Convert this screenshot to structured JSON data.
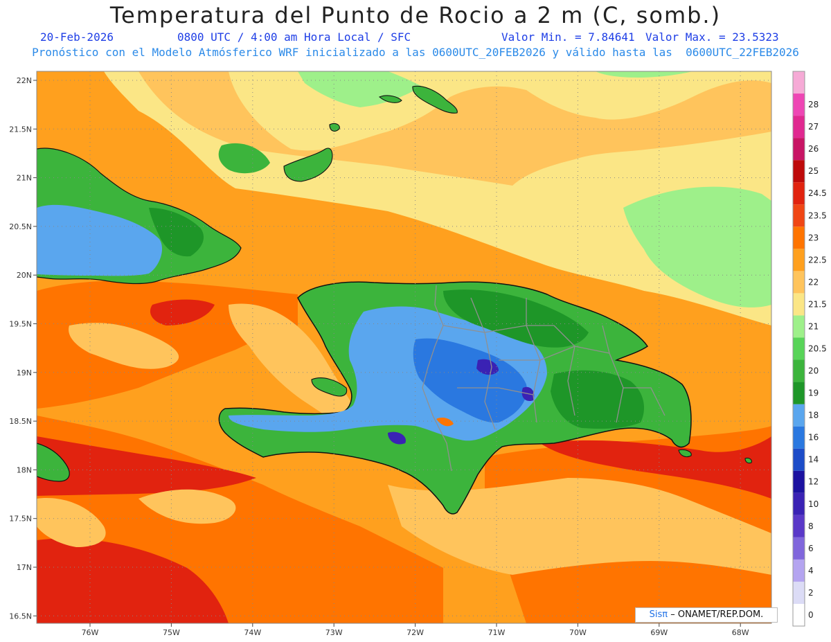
{
  "header": {
    "title": "Temperatura del Punto de Rocio a 2 m (C, somb.)",
    "date": "20-Feb-2026",
    "time_label": "0800 UTC / 4:00 am Hora Local / SFC",
    "valor_min": "Valor Min. = 7.84641",
    "valor_max": "Valor Max. = 23.5323",
    "forecast_line": "Pronóstico con el Modelo Atmósferico WRF inicializado a las 0600UTC_20FEB2026 y válido hasta las  0600UTC_22FEB2026"
  },
  "lat_labels": [
    "22N",
    "21.5N",
    "21N",
    "20.5N",
    "20N",
    "19.5N",
    "19N",
    "18.5N",
    "18N",
    "17.5N",
    "17N",
    "16.5N"
  ],
  "lon_labels": [
    "76W",
    "75W",
    "74W",
    "73W",
    "72W",
    "71W",
    "70W",
    "69W",
    "68W"
  ],
  "legend": {
    "levels": [
      "0",
      "2",
      "4",
      "6",
      "8",
      "10",
      "12",
      "14",
      "16",
      "18",
      "19",
      "20",
      "20.5",
      "21",
      "21.5",
      "22",
      "22.5",
      "23",
      "23.5",
      "24.5",
      "25",
      "26",
      "27",
      "28"
    ],
    "colors": [
      "#ffffff",
      "#dcdcf6",
      "#b4a4f0",
      "#8066dc",
      "#5a38c8",
      "#3a22b4",
      "#1c12a0",
      "#1c4cc8",
      "#2a78e0",
      "#5aa6ee",
      "#1e9628",
      "#3cb43c",
      "#58d458",
      "#9ef08a",
      "#fbe686",
      "#ffc45c",
      "#ffa01e",
      "#ff7400",
      "#f04614",
      "#e1230f",
      "#be0a0a",
      "#c81464",
      "#e02890",
      "#ee46b4",
      "#f6aad6"
    ]
  },
  "credit": {
    "brand": "Sisπ",
    "text": "– ONAMET/REP.DOM."
  },
  "map_colors": {
    "ocean_yellow": "#fbe686",
    "ocean_lightorange": "#ffc45c",
    "ocean_orange": "#ffa01e",
    "ocean_darkorange": "#ff7400",
    "ocean_red": "#e1230f",
    "land_green": "#3cb43c",
    "land_darkgreen": "#1e9628",
    "land_blue": "#5aa6ee",
    "land_darkblue": "#2a78e0",
    "land_navy": "#1c12a0",
    "light_green": "#9ef08a"
  }
}
